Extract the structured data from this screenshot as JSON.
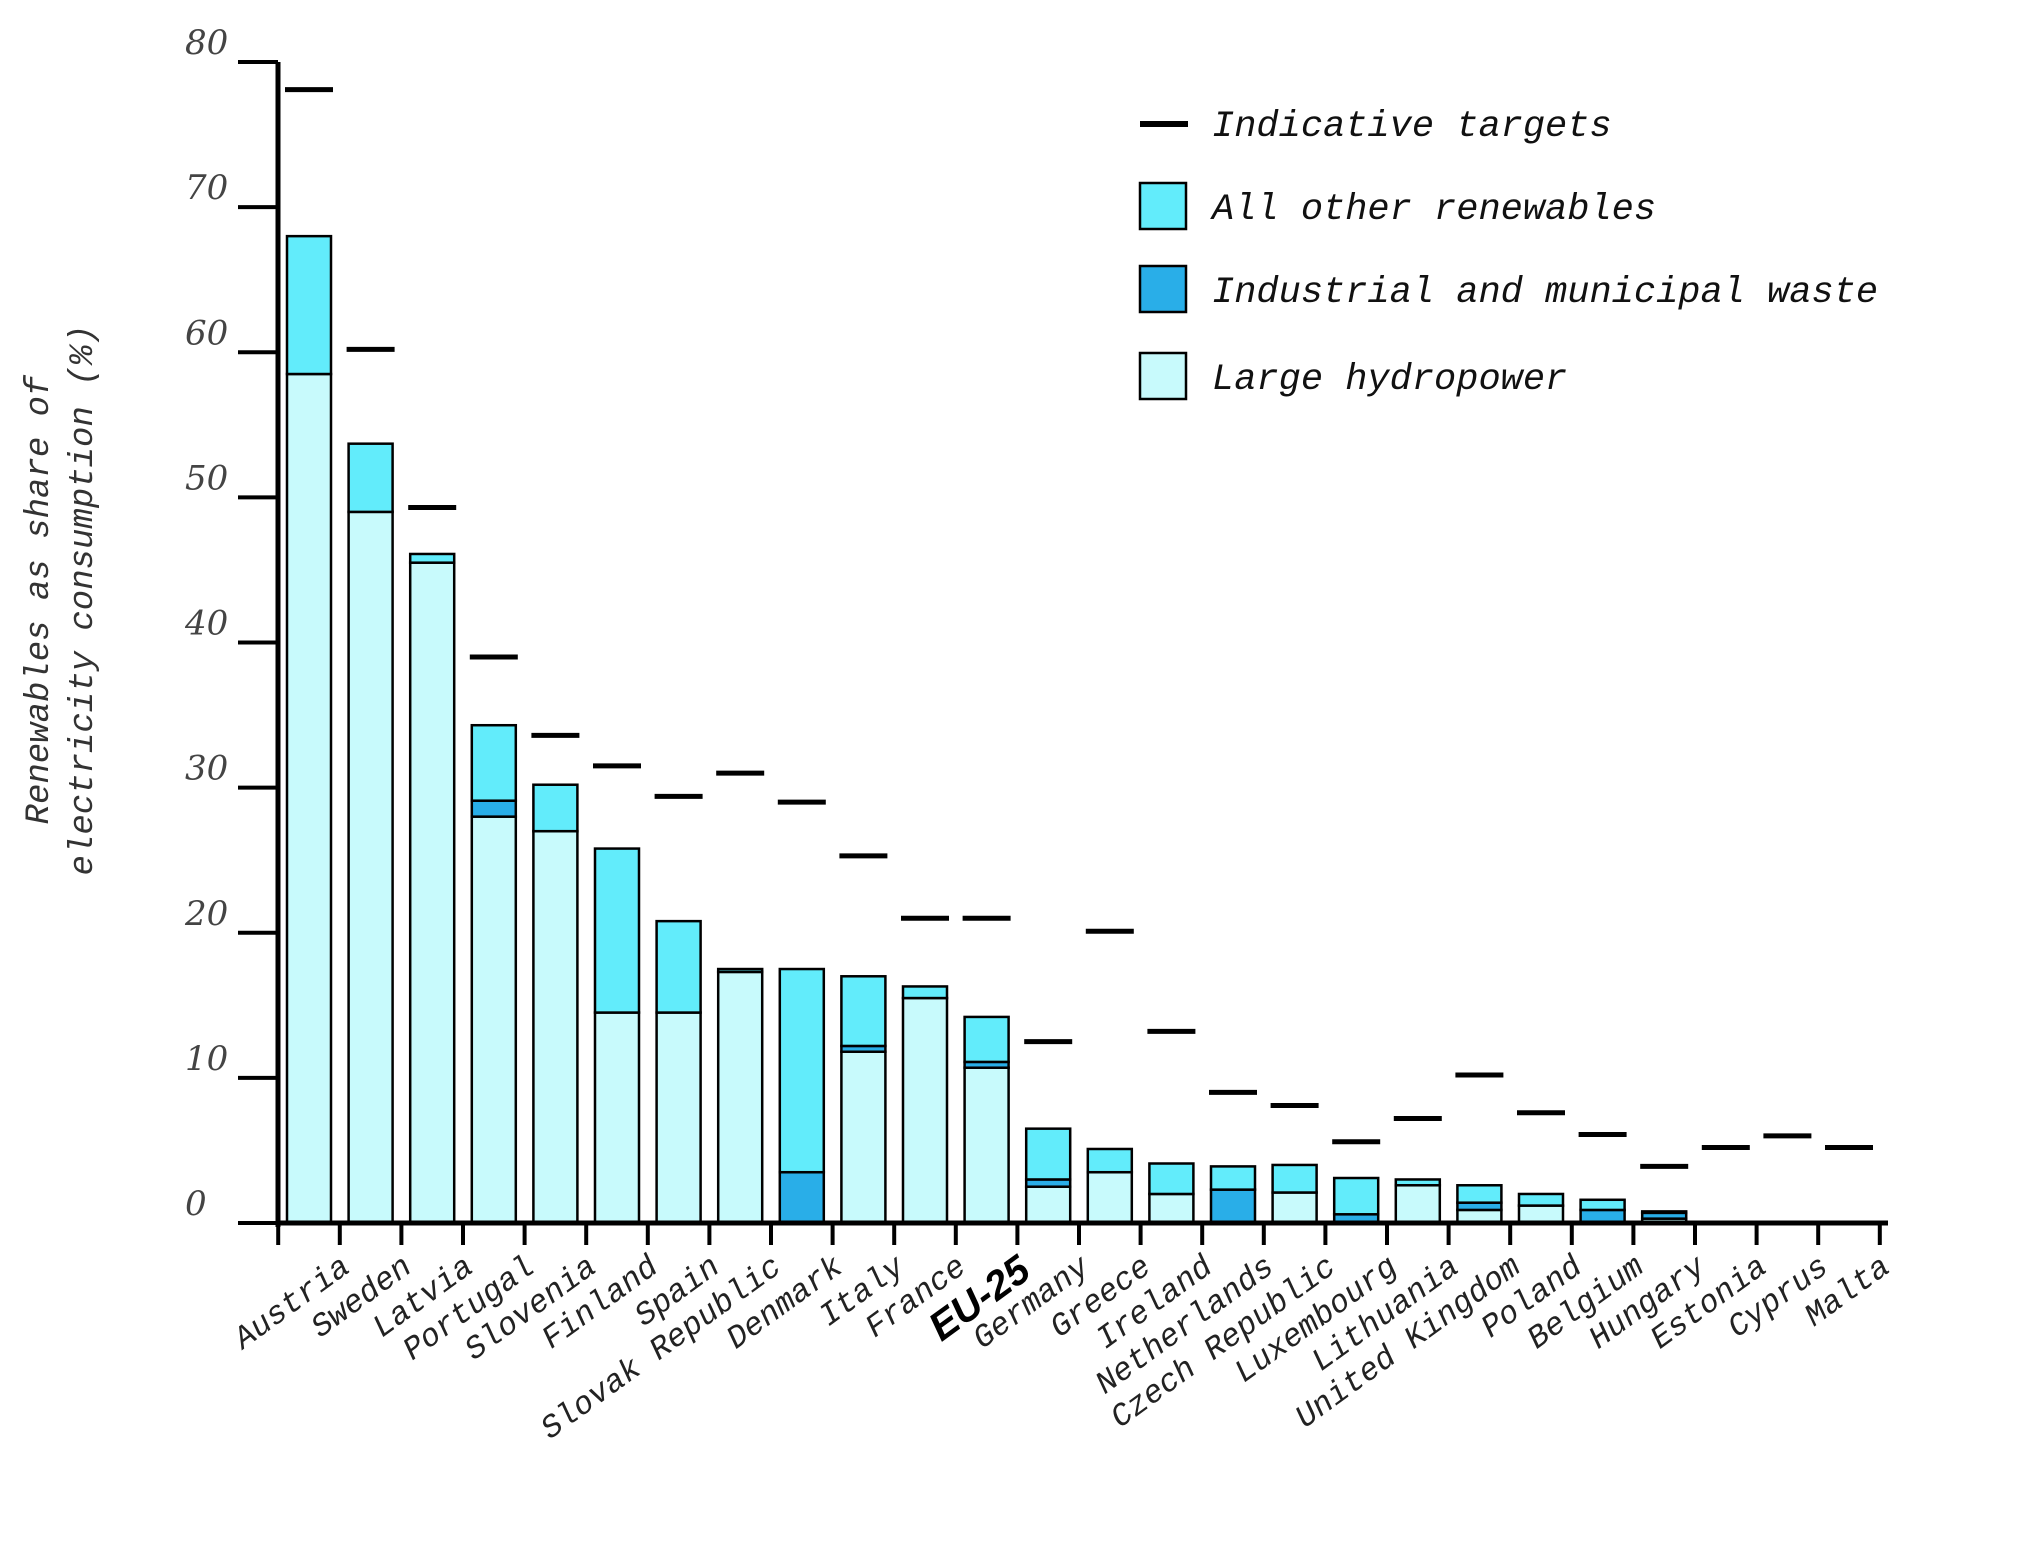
{
  "chart_data": {
    "type": "bar",
    "stacked": true,
    "ylabel_lines": [
      "Renewables as share of",
      "electricity consumption (%)"
    ],
    "ylim": [
      0,
      80
    ],
    "yticks": [
      0,
      10,
      20,
      30,
      40,
      50,
      60,
      70,
      80
    ],
    "categories": [
      "Austria",
      "Sweden",
      "Latvia",
      "Portugal",
      "Slovenia",
      "Finland",
      "Spain",
      "Slovak Republic",
      "Denmark",
      "Italy",
      "France",
      "EU-25",
      "Germany",
      "Greece",
      "Ireland",
      "Netherlands",
      "Czech Republic",
      "Luxembourg",
      "Lithuania",
      "United Kingdom",
      "Poland",
      "Belgium",
      "Hungary",
      "Estonia",
      "Cyprus",
      "Malta"
    ],
    "bold_categories": [
      "EU-25"
    ],
    "series": [
      {
        "name": "Large hydropower",
        "color": "#c8fafc",
        "values": [
          58.5,
          49,
          45.5,
          28,
          27,
          14.5,
          14.5,
          17.3,
          0,
          11.8,
          15.5,
          10.7,
          2.5,
          3.5,
          2,
          0,
          2.1,
          0,
          2.6,
          0.9,
          1.2,
          0,
          0.3,
          0,
          0,
          0
        ]
      },
      {
        "name": "Industrial and municipal waste",
        "color": "#29aee8",
        "values": [
          0,
          0,
          0,
          1.1,
          0,
          0,
          0,
          0,
          3.5,
          0.4,
          0,
          0.4,
          0.5,
          0,
          0,
          2.3,
          0,
          0.6,
          0,
          0.5,
          0,
          0.9,
          0.4,
          0,
          0,
          0
        ]
      },
      {
        "name": "All other renewables",
        "color": "#62ecfb",
        "values": [
          9.5,
          4.7,
          0.6,
          5.2,
          3.2,
          11.3,
          6.3,
          0.2,
          14,
          4.8,
          0.8,
          3.1,
          3.5,
          1.6,
          2.1,
          1.6,
          1.9,
          2.5,
          0.4,
          1.2,
          0.8,
          0.7,
          0.1,
          0,
          0,
          0
        ]
      }
    ],
    "targets": {
      "name": "Indicative targets",
      "values": [
        78.1,
        60.2,
        49.3,
        39,
        33.6,
        31.5,
        29.4,
        31,
        29,
        25.3,
        21,
        21,
        12.5,
        20.1,
        13.2,
        9,
        8.1,
        5.6,
        7.2,
        10.2,
        7.6,
        6.1,
        3.9,
        5.2,
        6,
        5.2
      ]
    },
    "legend": [
      {
        "label": "Indicative targets",
        "kind": "line",
        "color": "#000000"
      },
      {
        "label": "All other renewables",
        "kind": "box",
        "color": "#62ecfb"
      },
      {
        "label": "Industrial and municipal waste",
        "kind": "box",
        "color": "#29aee8"
      },
      {
        "label": "Large hydropower",
        "kind": "box",
        "color": "#c8fafc"
      }
    ],
    "legend_position": "top-right",
    "grid": false
  }
}
